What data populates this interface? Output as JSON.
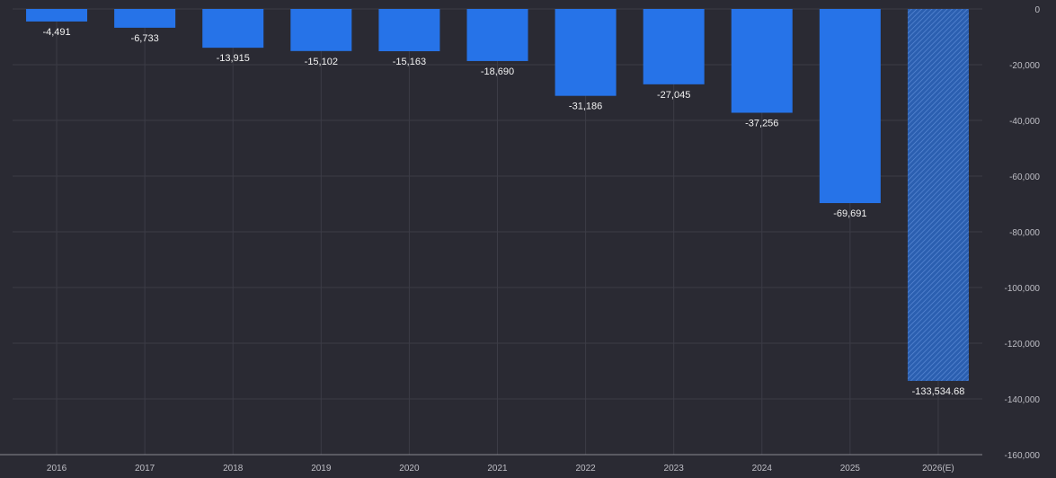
{
  "chart_data": {
    "type": "bar",
    "categories": [
      "2016",
      "2017",
      "2018",
      "2019",
      "2020",
      "2021",
      "2022",
      "2023",
      "2024",
      "2025",
      "2026(E)"
    ],
    "values": [
      -4491,
      -6733,
      -13915,
      -15102,
      -15163,
      -18690,
      -31186,
      -27045,
      -37256,
      -69691,
      -133534.68
    ],
    "labels": [
      "-4,491",
      "-6,733",
      "-13,915",
      "-15,102",
      "-15,163",
      "-18,690",
      "-31,186",
      "-27,045",
      "-37,256",
      "-69,691",
      "-133,534.68"
    ],
    "estimated": [
      false,
      false,
      false,
      false,
      false,
      false,
      false,
      false,
      false,
      false,
      true
    ],
    "ylim": [
      -160000,
      0
    ],
    "yticks": [
      0,
      -20000,
      -40000,
      -60000,
      -80000,
      -100000,
      -120000,
      -140000,
      -160000
    ],
    "ytick_labels": [
      "0",
      "-20,000",
      "-40,000",
      "-60,000",
      "-80,000",
      "-100,000",
      "-120,000",
      "-140,000",
      "-160,000"
    ],
    "y_axis_side": "right",
    "grid": true,
    "title": "",
    "xlabel": "",
    "ylabel": "",
    "colors": {
      "background": "#2a2a33",
      "bar": "#2673e8",
      "bar_estimated": "#2b5fb0",
      "grid": "#3c3c46",
      "tick_text": "#bfbfc6",
      "label_text": "#f2f2f2"
    }
  }
}
